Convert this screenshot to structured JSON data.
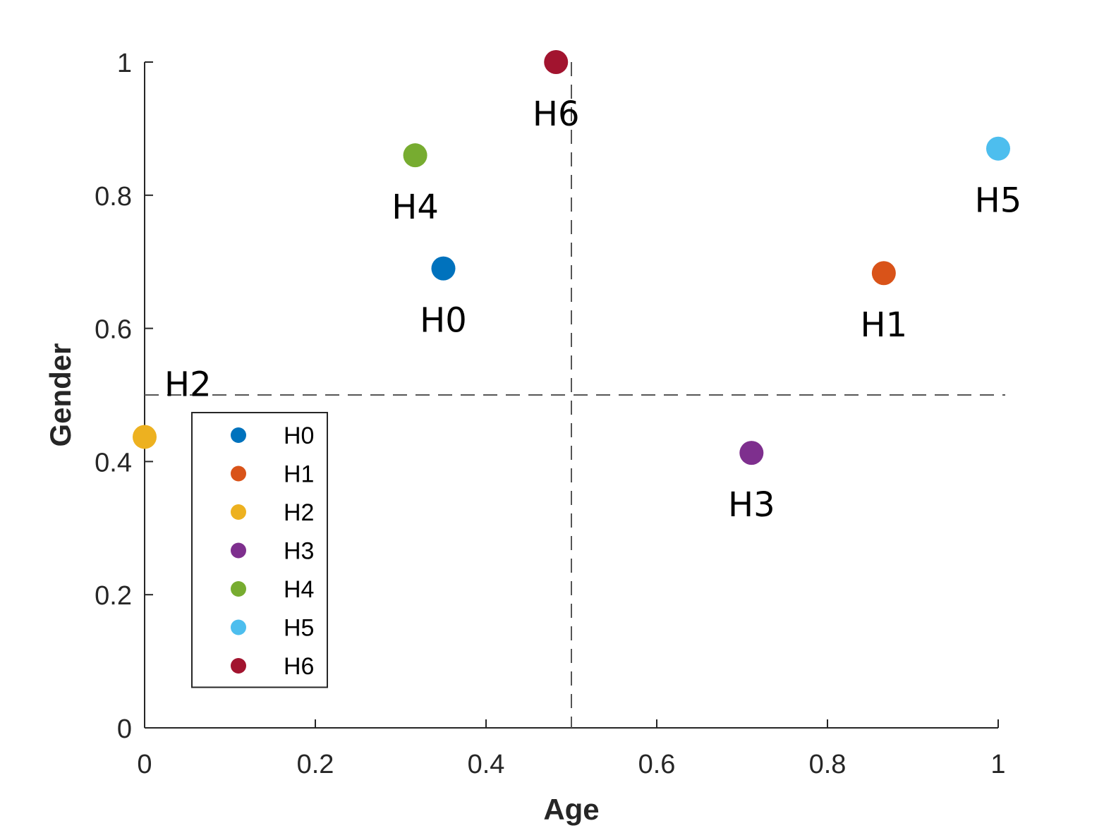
{
  "chart_data": {
    "type": "scatter",
    "title": "",
    "xlabel": "Age",
    "ylabel": "Gender",
    "xlim": [
      0,
      1
    ],
    "ylim": [
      0,
      1
    ],
    "xticks": [
      0,
      0.2,
      0.4,
      0.6,
      0.8,
      1
    ],
    "yticks": [
      0,
      0.2,
      0.4,
      0.6,
      0.8,
      1
    ],
    "xtick_labels": [
      "0",
      "0.2",
      "0.4",
      "0.6",
      "0.8",
      "1"
    ],
    "ytick_labels": [
      "0",
      "0.2",
      "0.4",
      "0.6",
      "0.8",
      "1"
    ],
    "grid": false,
    "reference_lines": {
      "x": 0.5,
      "y": 0.5,
      "style": "dashed"
    },
    "legend_position": "lower-left",
    "series": [
      {
        "name": "H0",
        "x": 0.35,
        "y": 0.69,
        "color": "#0072BD"
      },
      {
        "name": "H1",
        "x": 0.866,
        "y": 0.683,
        "color": "#D95319"
      },
      {
        "name": "H2",
        "x": 0.0,
        "y": 0.437,
        "color": "#EDB120"
      },
      {
        "name": "H3",
        "x": 0.711,
        "y": 0.413,
        "color": "#7E2F8E"
      },
      {
        "name": "H4",
        "x": 0.317,
        "y": 0.86,
        "color": "#77AC30"
      },
      {
        "name": "H5",
        "x": 1.0,
        "y": 0.87,
        "color": "#4DBEEE"
      },
      {
        "name": "H6",
        "x": 0.482,
        "y": 1.0,
        "color": "#A2142F"
      }
    ]
  }
}
